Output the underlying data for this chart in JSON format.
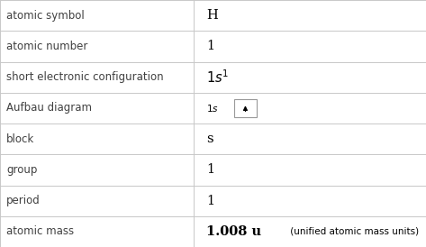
{
  "rows": [
    {
      "label": "atomic symbol",
      "value": "H",
      "type": "plain"
    },
    {
      "label": "atomic number",
      "value": "1",
      "type": "plain"
    },
    {
      "label": "short electronic configuration",
      "value": "1s1",
      "type": "superscript"
    },
    {
      "label": "Aufbau diagram",
      "value": "aufbau",
      "type": "aufbau"
    },
    {
      "label": "block",
      "value": "s",
      "type": "plain"
    },
    {
      "label": "group",
      "value": "1",
      "type": "plain"
    },
    {
      "label": "period",
      "value": "1",
      "type": "plain"
    },
    {
      "label": "atomic mass",
      "value": "1.008 u",
      "suffix": " (unified atomic mass units)",
      "type": "mass"
    }
  ],
  "bg_color": "#ffffff",
  "border_color": "#c8c8c8",
  "label_color": "#404040",
  "value_color": "#000000",
  "label_fontsize": 8.5,
  "value_fontsize": 10.5,
  "col_split": 0.455,
  "fig_width": 4.73,
  "fig_height": 2.74,
  "dpi": 100
}
